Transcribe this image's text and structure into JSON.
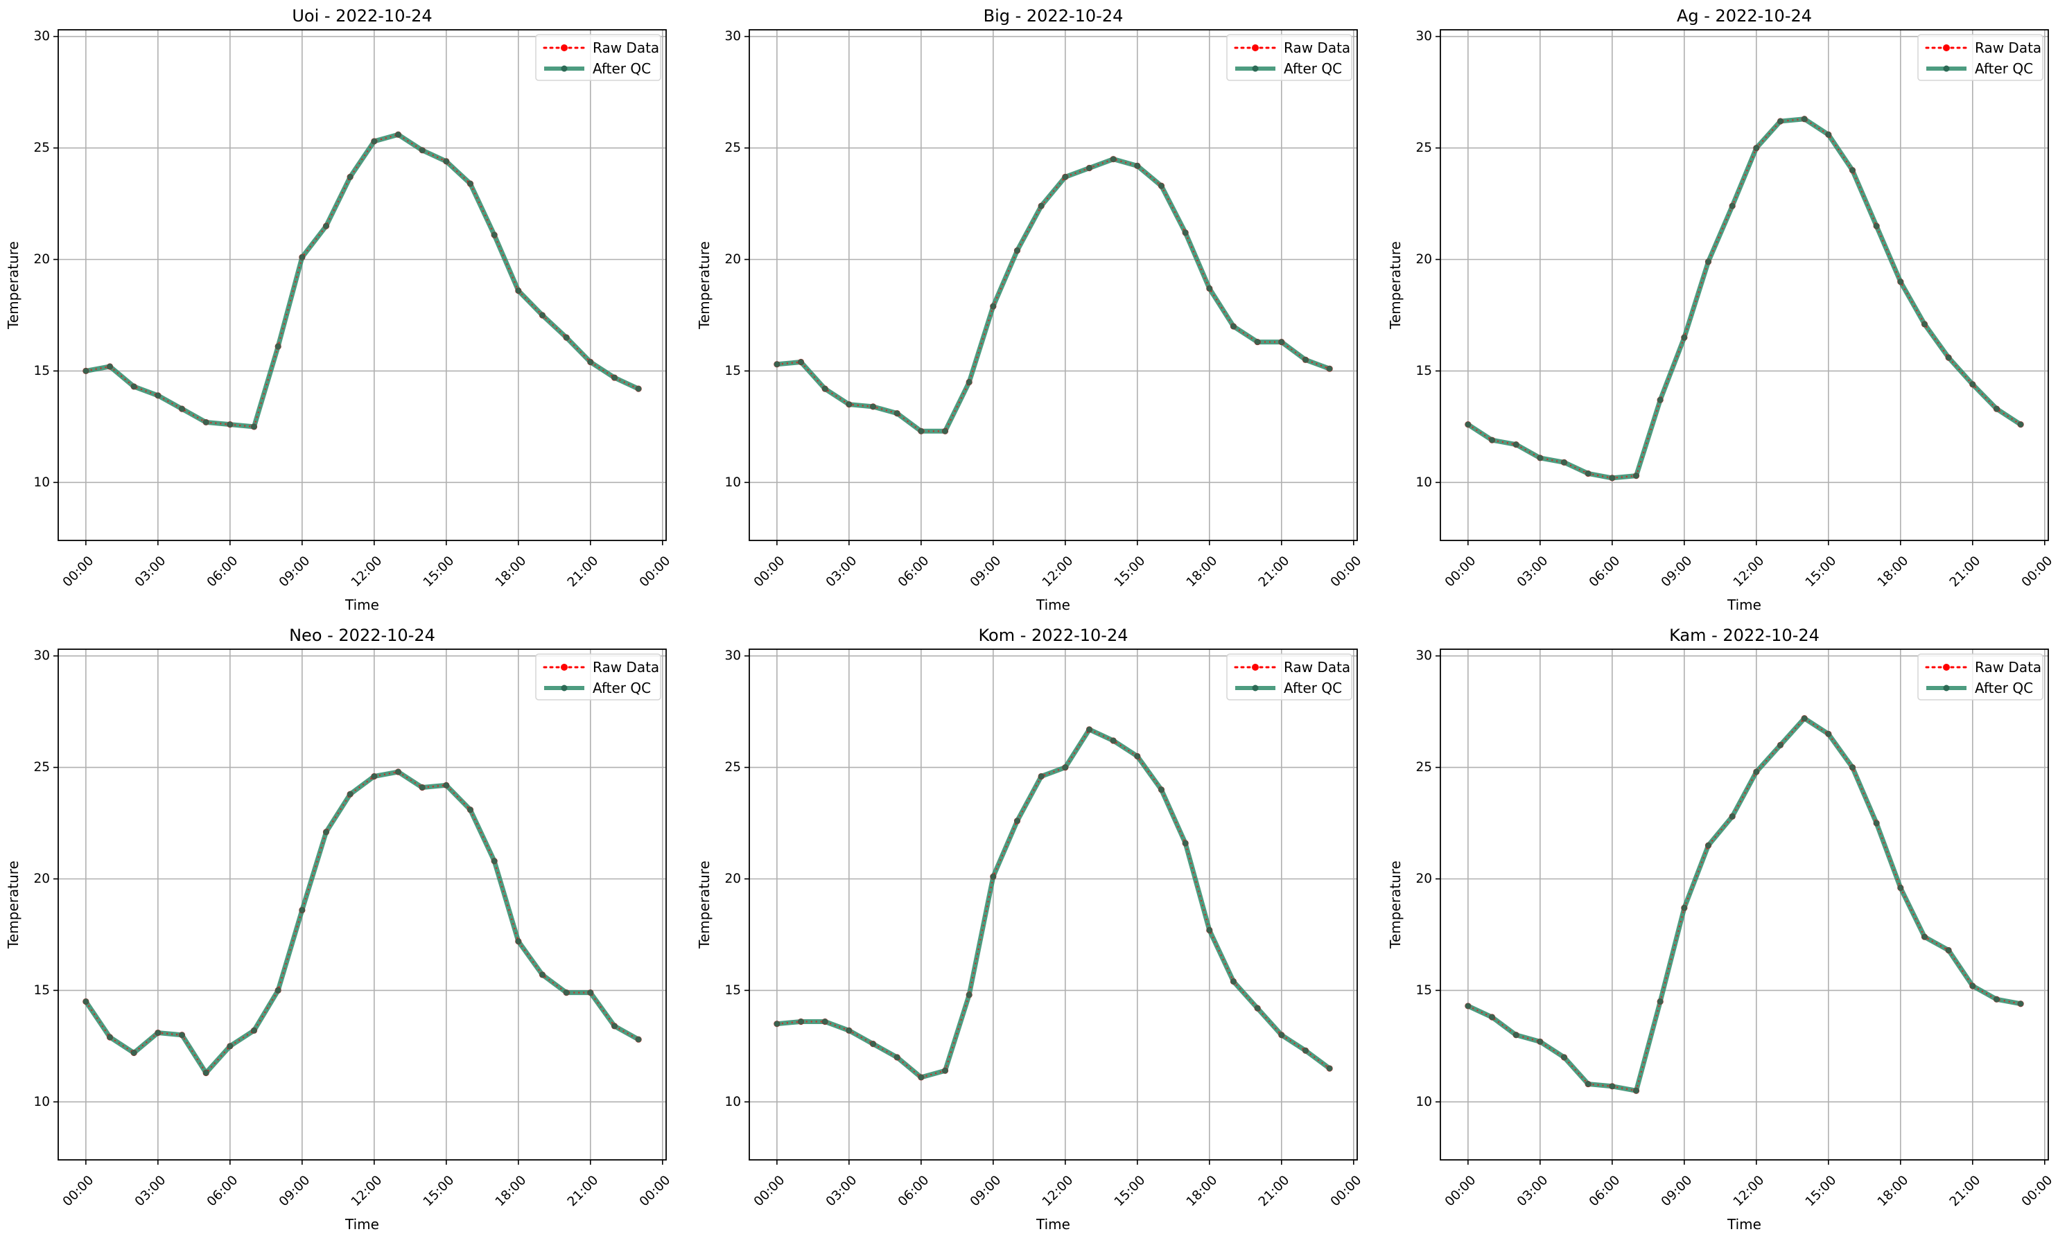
{
  "chart_data": [
    {
      "type": "line",
      "title": "Uoi - 2022-10-24",
      "xlabel": "Time",
      "ylabel": "Temperature",
      "x": [
        "00:00",
        "01:00",
        "02:00",
        "03:00",
        "04:00",
        "05:00",
        "06:00",
        "07:00",
        "08:00",
        "09:00",
        "10:00",
        "11:00",
        "12:00",
        "13:00",
        "14:00",
        "15:00",
        "16:00",
        "17:00",
        "18:00",
        "19:00",
        "20:00",
        "21:00",
        "22:00",
        "23:00"
      ],
      "x_ticks": [
        "00:00",
        "03:00",
        "06:00",
        "09:00",
        "12:00",
        "15:00",
        "18:00",
        "21:00",
        "00:00"
      ],
      "y_ticks": [
        10,
        15,
        20,
        25,
        30
      ],
      "ylim": [
        7.4,
        30.3
      ],
      "grid": true,
      "legend_position": "top-right",
      "series": [
        {
          "name": "Raw Data",
          "color": "#ff0000",
          "values": [
            15.0,
            15.2,
            14.3,
            13.9,
            13.3,
            12.7,
            12.6,
            12.5,
            16.1,
            20.1,
            21.5,
            23.7,
            25.3,
            25.6,
            24.9,
            24.4,
            23.4,
            21.1,
            18.6,
            17.5,
            16.5,
            15.4,
            14.7,
            14.2
          ]
        },
        {
          "name": "After QC",
          "color": "#2e8b6a",
          "values": [
            15.0,
            15.2,
            14.3,
            13.9,
            13.3,
            12.7,
            12.6,
            12.5,
            16.1,
            20.1,
            21.5,
            23.7,
            25.3,
            25.6,
            24.9,
            24.4,
            23.4,
            21.1,
            18.6,
            17.5,
            16.5,
            15.4,
            14.7,
            14.2
          ]
        }
      ]
    },
    {
      "type": "line",
      "title": "Big - 2022-10-24",
      "xlabel": "Time",
      "ylabel": "Temperature",
      "x": [
        "00:00",
        "01:00",
        "02:00",
        "03:00",
        "04:00",
        "05:00",
        "06:00",
        "07:00",
        "08:00",
        "09:00",
        "10:00",
        "11:00",
        "12:00",
        "13:00",
        "14:00",
        "15:00",
        "16:00",
        "17:00",
        "18:00",
        "19:00",
        "20:00",
        "21:00",
        "22:00",
        "23:00"
      ],
      "x_ticks": [
        "00:00",
        "03:00",
        "06:00",
        "09:00",
        "12:00",
        "15:00",
        "18:00",
        "21:00",
        "00:00"
      ],
      "y_ticks": [
        10,
        15,
        20,
        25,
        30
      ],
      "ylim": [
        7.4,
        30.3
      ],
      "grid": true,
      "legend_position": "top-right",
      "series": [
        {
          "name": "Raw Data",
          "color": "#ff0000",
          "values": [
            15.3,
            15.4,
            14.2,
            13.5,
            13.4,
            13.1,
            12.3,
            12.3,
            14.5,
            17.9,
            20.4,
            22.4,
            23.7,
            24.1,
            24.5,
            24.2,
            23.3,
            21.2,
            18.7,
            17.0,
            16.3,
            16.3,
            15.5,
            15.1
          ]
        },
        {
          "name": "After QC",
          "color": "#2e8b6a",
          "values": [
            15.3,
            15.4,
            14.2,
            13.5,
            13.4,
            13.1,
            12.3,
            12.3,
            14.5,
            17.9,
            20.4,
            22.4,
            23.7,
            24.1,
            24.5,
            24.2,
            23.3,
            21.2,
            18.7,
            17.0,
            16.3,
            16.3,
            15.5,
            15.1
          ]
        }
      ]
    },
    {
      "type": "line",
      "title": "Ag - 2022-10-24",
      "xlabel": "Time",
      "ylabel": "Temperature",
      "x": [
        "00:00",
        "01:00",
        "02:00",
        "03:00",
        "04:00",
        "05:00",
        "06:00",
        "07:00",
        "08:00",
        "09:00",
        "10:00",
        "11:00",
        "12:00",
        "13:00",
        "14:00",
        "15:00",
        "16:00",
        "17:00",
        "18:00",
        "19:00",
        "20:00",
        "21:00",
        "22:00",
        "23:00"
      ],
      "x_ticks": [
        "00:00",
        "03:00",
        "06:00",
        "09:00",
        "12:00",
        "15:00",
        "18:00",
        "21:00",
        "00:00"
      ],
      "y_ticks": [
        10,
        15,
        20,
        25,
        30
      ],
      "ylim": [
        7.4,
        30.3
      ],
      "grid": true,
      "legend_position": "top-right",
      "series": [
        {
          "name": "Raw Data",
          "color": "#ff0000",
          "values": [
            12.6,
            11.9,
            11.7,
            11.1,
            10.9,
            10.4,
            10.2,
            10.3,
            13.7,
            16.5,
            19.9,
            22.4,
            25.0,
            26.2,
            26.3,
            25.6,
            24.0,
            21.5,
            19.0,
            17.1,
            15.6,
            14.4,
            13.3,
            12.6
          ]
        },
        {
          "name": "After QC",
          "color": "#2e8b6a",
          "values": [
            12.6,
            11.9,
            11.7,
            11.1,
            10.9,
            10.4,
            10.2,
            10.3,
            13.7,
            16.5,
            19.9,
            22.4,
            25.0,
            26.2,
            26.3,
            25.6,
            24.0,
            21.5,
            19.0,
            17.1,
            15.6,
            14.4,
            13.3,
            12.6
          ]
        }
      ]
    },
    {
      "type": "line",
      "title": "Neo - 2022-10-24",
      "xlabel": "Time",
      "ylabel": "Temperature",
      "x": [
        "00:00",
        "01:00",
        "02:00",
        "03:00",
        "04:00",
        "05:00",
        "06:00",
        "07:00",
        "08:00",
        "09:00",
        "10:00",
        "11:00",
        "12:00",
        "13:00",
        "14:00",
        "15:00",
        "16:00",
        "17:00",
        "18:00",
        "19:00",
        "20:00",
        "21:00",
        "22:00",
        "23:00"
      ],
      "x_ticks": [
        "00:00",
        "03:00",
        "06:00",
        "09:00",
        "12:00",
        "15:00",
        "18:00",
        "21:00",
        "00:00"
      ],
      "y_ticks": [
        10,
        15,
        20,
        25,
        30
      ],
      "ylim": [
        7.4,
        30.3
      ],
      "grid": true,
      "legend_position": "top-right",
      "series": [
        {
          "name": "Raw Data",
          "color": "#ff0000",
          "values": [
            14.5,
            12.9,
            12.2,
            13.1,
            13.0,
            11.3,
            12.5,
            13.2,
            15.0,
            18.6,
            22.1,
            23.8,
            24.6,
            24.8,
            24.1,
            24.2,
            23.1,
            20.8,
            17.2,
            15.7,
            14.9,
            14.9,
            13.4,
            12.8
          ]
        },
        {
          "name": "After QC",
          "color": "#2e8b6a",
          "values": [
            14.5,
            12.9,
            12.2,
            13.1,
            13.0,
            11.3,
            12.5,
            13.2,
            15.0,
            18.6,
            22.1,
            23.8,
            24.6,
            24.8,
            24.1,
            24.2,
            23.1,
            20.8,
            17.2,
            15.7,
            14.9,
            14.9,
            13.4,
            12.8
          ]
        }
      ]
    },
    {
      "type": "line",
      "title": "Kom - 2022-10-24",
      "xlabel": "Time",
      "ylabel": "Temperature",
      "x": [
        "00:00",
        "01:00",
        "02:00",
        "03:00",
        "04:00",
        "05:00",
        "06:00",
        "07:00",
        "08:00",
        "09:00",
        "10:00",
        "11:00",
        "12:00",
        "13:00",
        "14:00",
        "15:00",
        "16:00",
        "17:00",
        "18:00",
        "19:00",
        "20:00",
        "21:00",
        "22:00",
        "23:00"
      ],
      "x_ticks": [
        "00:00",
        "03:00",
        "06:00",
        "09:00",
        "12:00",
        "15:00",
        "18:00",
        "21:00",
        "00:00"
      ],
      "y_ticks": [
        10,
        15,
        20,
        25,
        30
      ],
      "ylim": [
        7.4,
        30.3
      ],
      "grid": true,
      "legend_position": "top-right",
      "series": [
        {
          "name": "Raw Data",
          "color": "#ff0000",
          "values": [
            13.5,
            13.6,
            13.6,
            13.2,
            12.6,
            12.0,
            11.1,
            11.4,
            14.8,
            20.1,
            22.6,
            24.6,
            25.0,
            26.7,
            26.2,
            25.5,
            24.0,
            21.6,
            17.7,
            15.4,
            14.2,
            13.0,
            12.3,
            11.5
          ]
        },
        {
          "name": "After QC",
          "color": "#2e8b6a",
          "values": [
            13.5,
            13.6,
            13.6,
            13.2,
            12.6,
            12.0,
            11.1,
            11.4,
            14.8,
            20.1,
            22.6,
            24.6,
            25.0,
            26.7,
            26.2,
            25.5,
            24.0,
            21.6,
            17.7,
            15.4,
            14.2,
            13.0,
            12.3,
            11.5
          ]
        }
      ]
    },
    {
      "type": "line",
      "title": "Kam - 2022-10-24",
      "xlabel": "Time",
      "ylabel": "Temperature",
      "x": [
        "00:00",
        "01:00",
        "02:00",
        "03:00",
        "04:00",
        "05:00",
        "06:00",
        "07:00",
        "08:00",
        "09:00",
        "10:00",
        "11:00",
        "12:00",
        "13:00",
        "14:00",
        "15:00",
        "16:00",
        "17:00",
        "18:00",
        "19:00",
        "20:00",
        "21:00",
        "22:00",
        "23:00"
      ],
      "x_ticks": [
        "00:00",
        "03:00",
        "06:00",
        "09:00",
        "12:00",
        "15:00",
        "18:00",
        "21:00",
        "00:00"
      ],
      "y_ticks": [
        10,
        15,
        20,
        25,
        30
      ],
      "ylim": [
        7.4,
        30.3
      ],
      "grid": true,
      "legend_position": "top-right",
      "series": [
        {
          "name": "Raw Data",
          "color": "#ff0000",
          "values": [
            14.3,
            13.8,
            13.0,
            12.7,
            12.0,
            10.8,
            10.7,
            10.5,
            14.5,
            18.7,
            21.5,
            22.8,
            24.8,
            26.0,
            27.2,
            26.5,
            25.0,
            22.5,
            19.6,
            17.4,
            16.8,
            15.2,
            14.6,
            14.4
          ]
        },
        {
          "name": "After QC",
          "color": "#2e8b6a",
          "values": [
            14.3,
            13.8,
            13.0,
            12.7,
            12.0,
            10.8,
            10.7,
            10.5,
            14.5,
            18.7,
            21.5,
            22.8,
            24.8,
            26.0,
            27.2,
            26.5,
            25.0,
            22.5,
            19.6,
            17.4,
            16.8,
            15.2,
            14.6,
            14.4
          ]
        }
      ]
    }
  ]
}
